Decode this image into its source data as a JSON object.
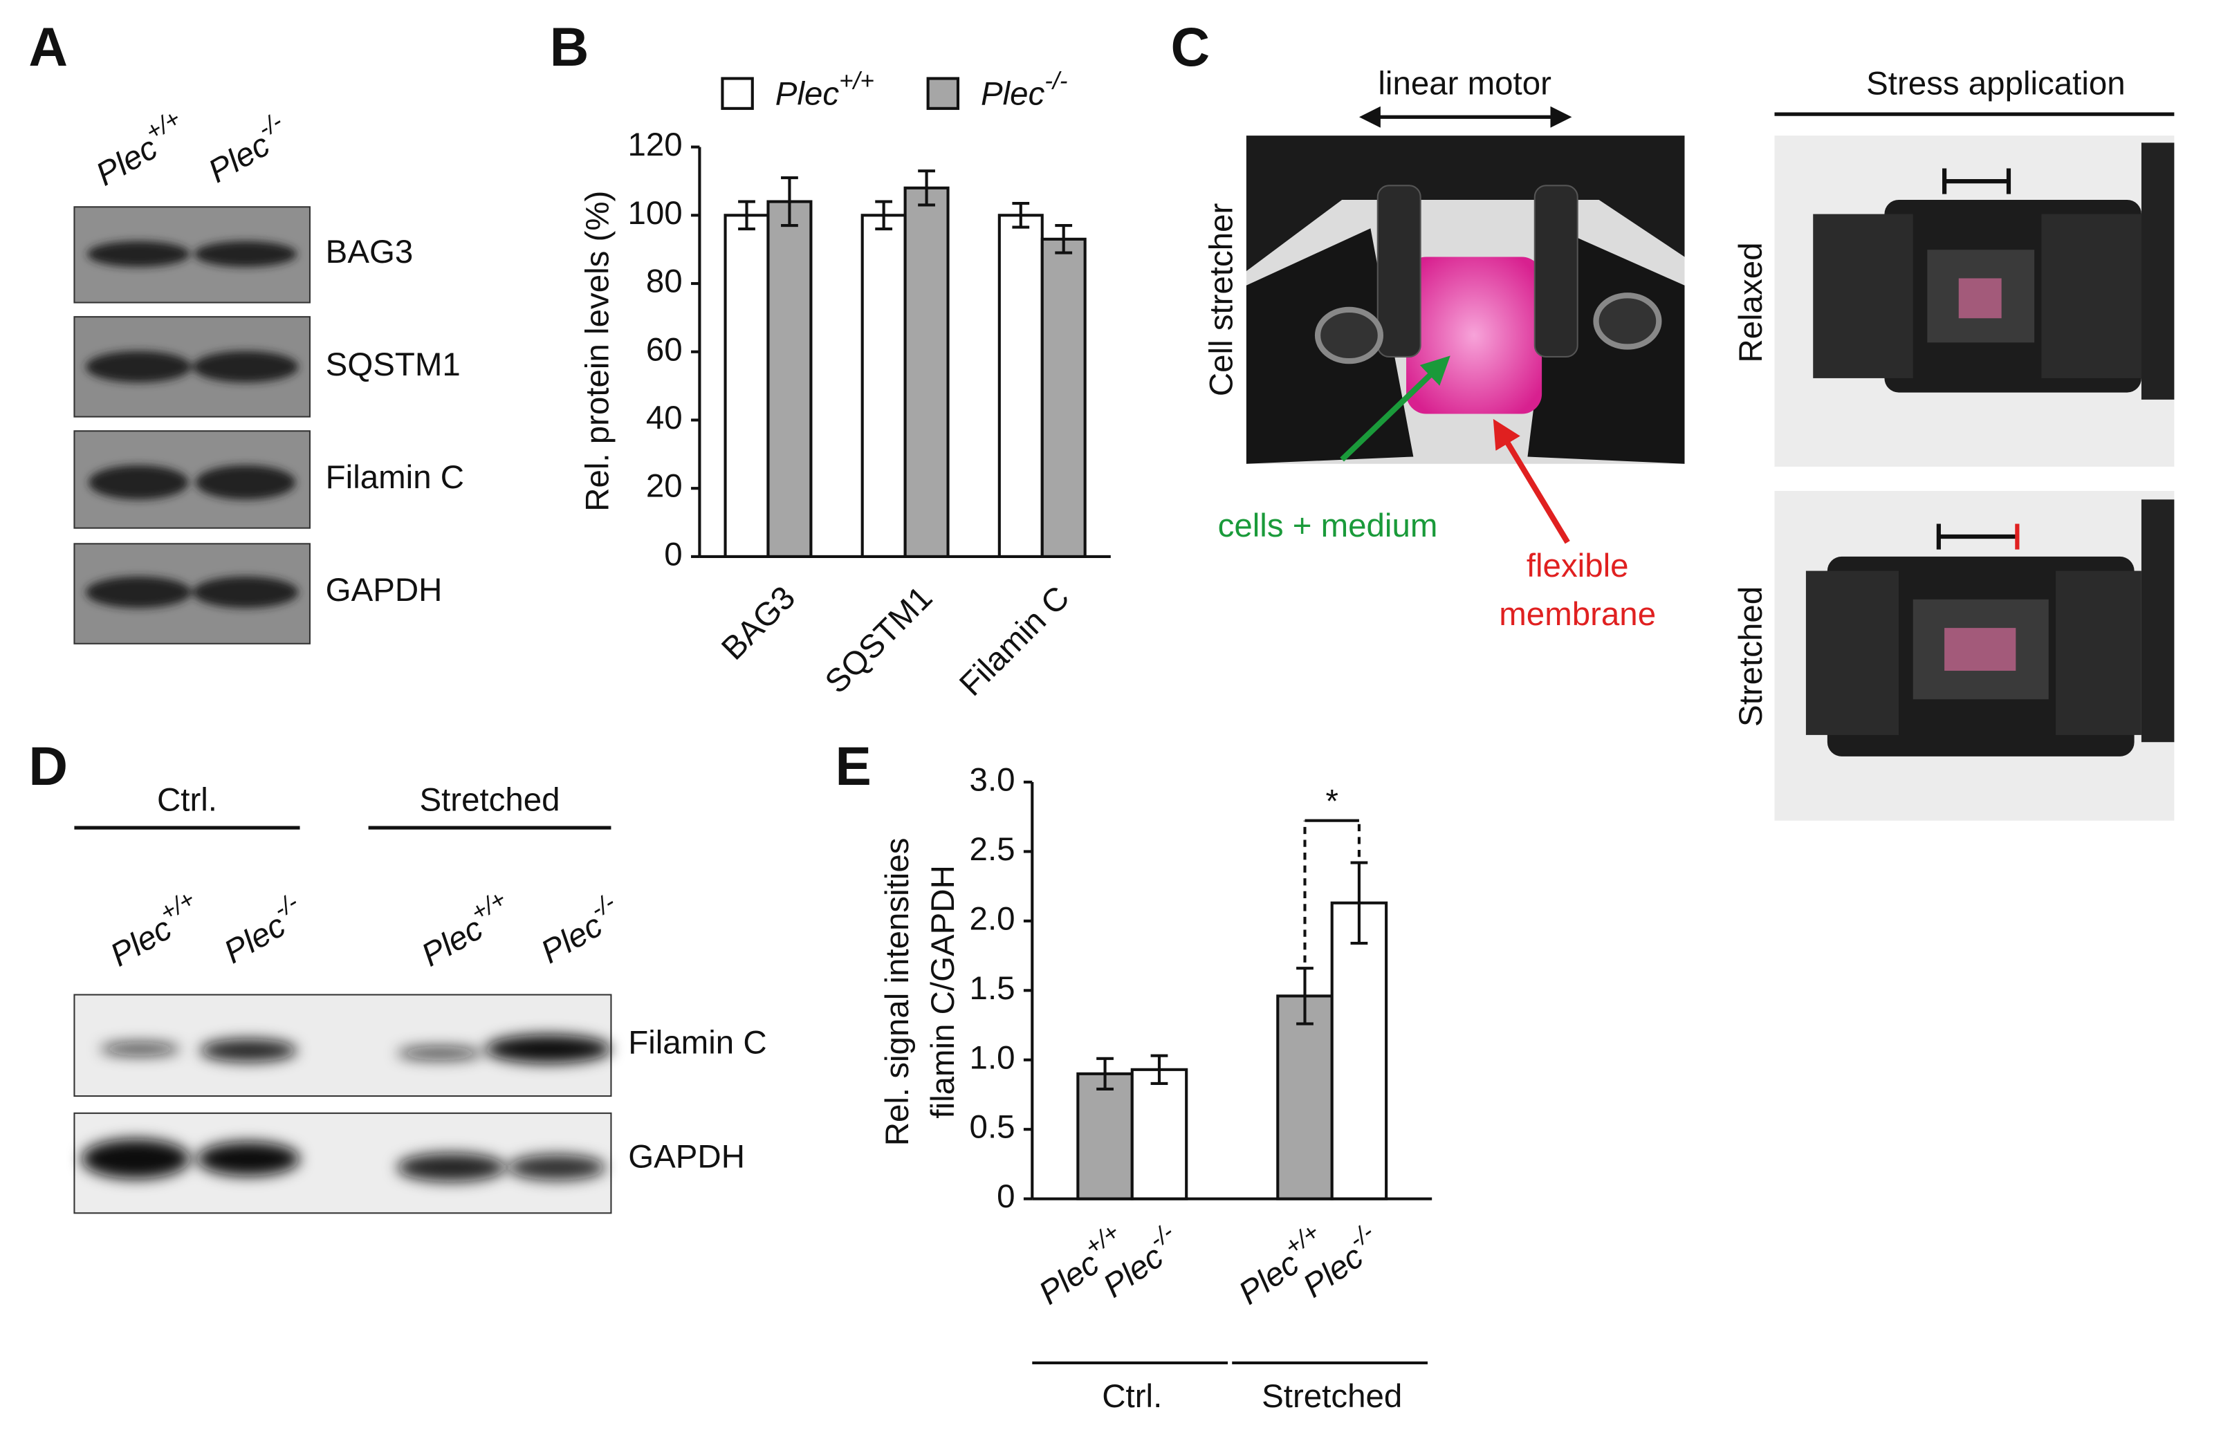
{
  "panels": {
    "A": {
      "label": "A",
      "lanes": [
        "Plec+/+",
        "Plec-/-"
      ],
      "rows": [
        "BAG3",
        "SQSTM1",
        "Filamin C",
        "GAPDH"
      ]
    },
    "C": {
      "label": "C",
      "motor": "linear motor",
      "device": "Cell stretcher",
      "cells": "cells + medium",
      "membrane": [
        "flexible",
        "membrane"
      ],
      "stress_title": "Stress application",
      "states": [
        "Relaxed",
        "Stretched"
      ]
    },
    "D": {
      "label": "D",
      "groups": [
        "Ctrl.",
        "Stretched"
      ],
      "lanes": [
        "Plec+/+",
        "Plec-/-",
        "Plec+/+",
        "Plec-/-"
      ],
      "rows": [
        "Filamin C",
        "GAPDH"
      ]
    }
  },
  "chart_data": [
    {
      "type": "grouped-bar",
      "label": "B",
      "ylabel": "Rel. protein levels (%)",
      "categories": [
        "BAG3",
        "SQSTM1",
        "Filamin C"
      ],
      "series": [
        {
          "name": "Plec+/+",
          "color": "#ffffff",
          "values": [
            100,
            100,
            100
          ],
          "errors": [
            4,
            4,
            3.5
          ]
        },
        {
          "name": "Plec-/-",
          "color": "#a6a6a6",
          "values": [
            104,
            108,
            93
          ],
          "errors": [
            7,
            5,
            4
          ]
        }
      ],
      "ylim": [
        0,
        120
      ],
      "yticks": [
        0,
        20,
        40,
        60,
        80,
        100,
        120
      ]
    },
    {
      "type": "bar",
      "label": "E",
      "ylabel": [
        "Rel. signal intensities",
        "filamin C/GAPDH"
      ],
      "categories": [
        "Plec+/+",
        "Plec-/-",
        "Plec+/+",
        "Plec-/-"
      ],
      "groups": [
        "Ctrl.",
        "Stretched"
      ],
      "values": [
        0.9,
        0.93,
        1.46,
        2.13
      ],
      "errors": [
        0.11,
        0.1,
        0.2,
        0.29
      ],
      "colors": [
        "#a6a6a6",
        "#ffffff",
        "#a6a6a6",
        "#ffffff"
      ],
      "ylim": [
        0,
        3
      ],
      "yticks": [
        0,
        0.5,
        {
          "value": 1,
          "label": "1.0"
        },
        1.5,
        {
          "value": 2,
          "label": "2.0"
        },
        2.5,
        {
          "value": 3,
          "label": "3.0"
        }
      ],
      "annotation": "*"
    }
  ]
}
